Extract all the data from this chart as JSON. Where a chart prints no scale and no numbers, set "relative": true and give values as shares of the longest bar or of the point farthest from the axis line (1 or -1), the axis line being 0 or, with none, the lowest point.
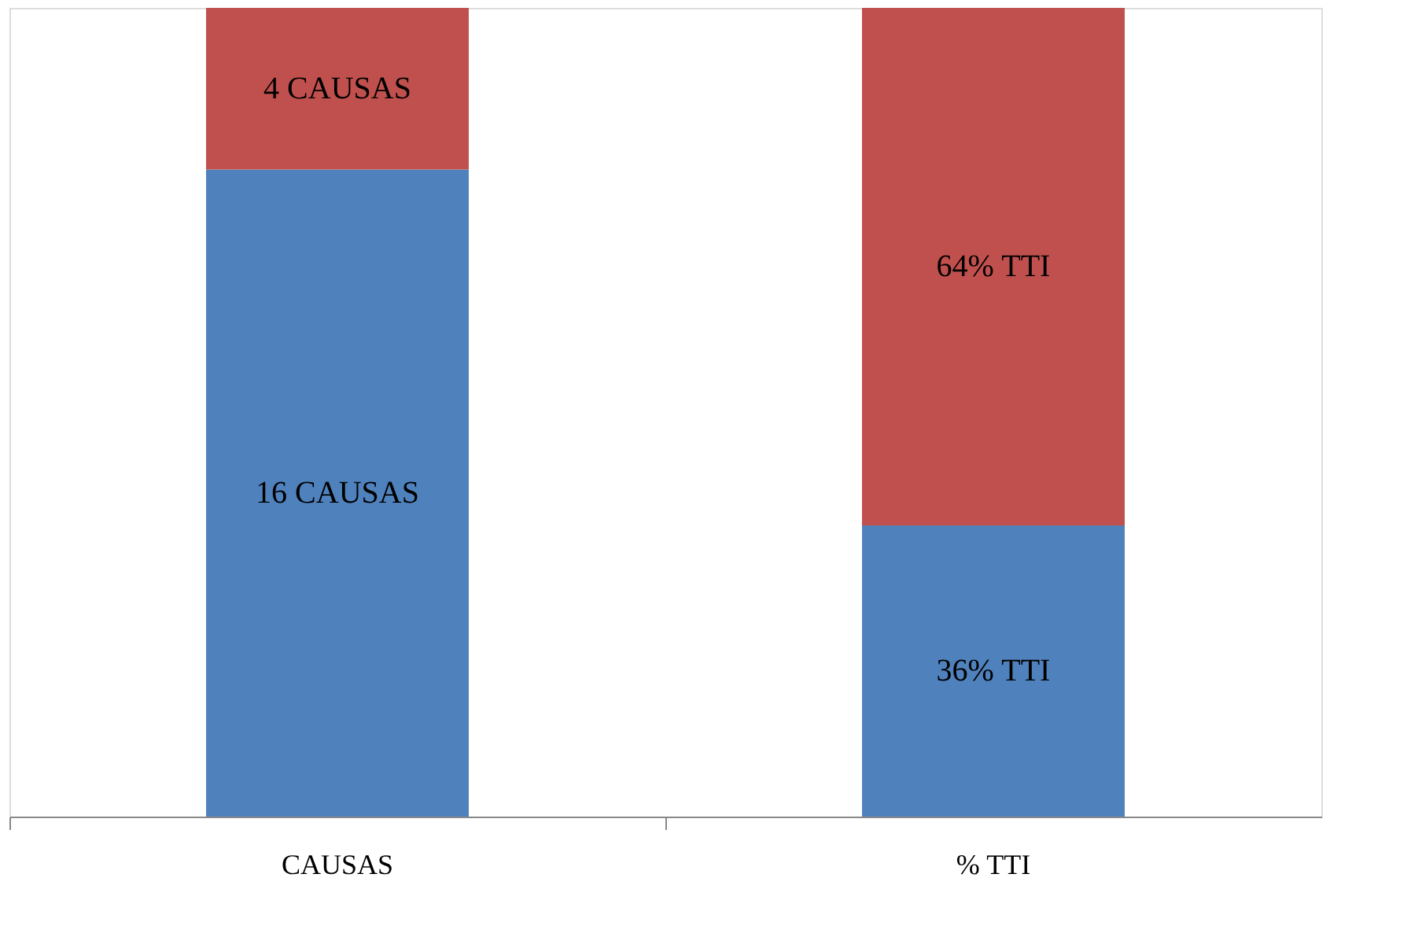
{
  "chart_data": {
    "type": "bar",
    "stacked": true,
    "relative": true,
    "categories": [
      "CAUSAS",
      "% TTI"
    ],
    "series": [
      {
        "color": "#4f81bd",
        "values": [
          0.8,
          0.36
        ]
      },
      {
        "color": "#c0504d",
        "values": [
          0.2,
          0.64
        ]
      }
    ],
    "annotations": [
      "16 CAUSAS",
      "36% TTI",
      "4 CAUSAS",
      "64% TTI"
    ]
  }
}
